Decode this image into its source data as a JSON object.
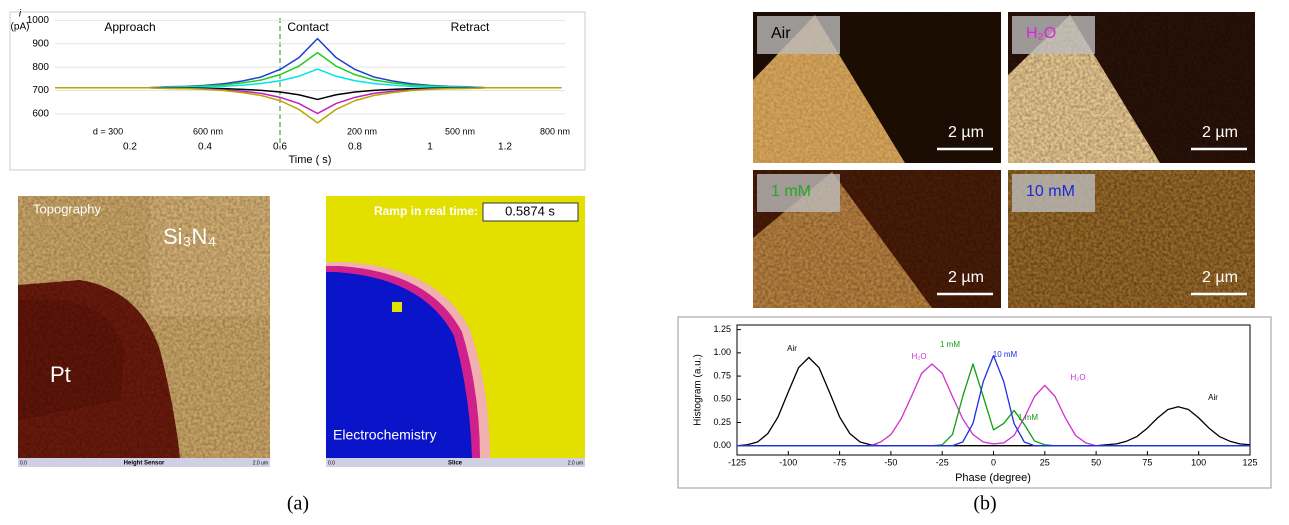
{
  "panel_labels": [
    "(a)",
    "(b)"
  ],
  "maps": {
    "topography": {
      "title": "Topography",
      "material_top": "Si₃N₄",
      "material_bottom": "Pt",
      "axis_start": "0.0",
      "axis_label": "Height Sensor",
      "axis_end": "2.0 um"
    },
    "electrochemistry": {
      "title": "Electrochemistry",
      "ramp_label": "Ramp in real time:",
      "ramp_value": "0.5874 s",
      "axis_start": "0.0",
      "axis_label": "Slice",
      "axis_end": "2.0 um"
    }
  },
  "phase_images": [
    {
      "label": "Air",
      "scale": "2 µm"
    },
    {
      "label": "H₂O",
      "scale": "2 µm"
    },
    {
      "label": "1 mM",
      "scale": "2 µm"
    },
    {
      "label": "10 mM",
      "scale": "2 µm"
    }
  ],
  "chart_data": [
    {
      "type": "line",
      "y_label_symbol": "i",
      "y_label": "(pA)",
      "x_label": "Time ( s)",
      "phase_labels": [
        "Approach",
        "Contact",
        "Retract"
      ],
      "distance_labels": [
        "d = 300",
        "600 nm",
        "200 nm",
        "500 nm",
        "800 nm"
      ],
      "x": [
        0,
        0.05,
        0.1,
        0.15,
        0.2,
        0.25,
        0.3,
        0.35,
        0.4,
        0.45,
        0.5,
        0.55,
        0.6,
        0.65,
        0.7,
        0.75,
        0.8,
        0.85,
        0.9,
        0.95,
        1,
        1.05,
        1.1,
        1.15,
        1.2,
        1.25,
        1.3,
        1.35
      ],
      "xlim": [
        0,
        1.36
      ],
      "xticks": [
        0.2,
        0.4,
        0.6,
        0.8,
        1,
        1.2
      ],
      "ylim": [
        540,
        1010
      ],
      "yticks": [
        600,
        700,
        800,
        900,
        1000
      ],
      "grid": true,
      "series": [
        {
          "color": "#1f3fd0",
          "values": [
            712,
            712,
            712,
            712,
            712,
            712,
            716,
            718,
            722,
            729,
            741,
            758,
            790,
            840,
            922,
            840,
            790,
            758,
            741,
            729,
            722,
            718,
            716,
            712,
            712,
            712,
            712,
            712
          ]
        },
        {
          "color": "#22cc22",
          "values": [
            712,
            712,
            712,
            712,
            712,
            712,
            715,
            717,
            720,
            724,
            733,
            745,
            768,
            804,
            862,
            804,
            768,
            745,
            733,
            724,
            720,
            717,
            715,
            712,
            712,
            712,
            712,
            712
          ]
        },
        {
          "color": "#00e5e5",
          "values": [
            712,
            712,
            712,
            712,
            712,
            712,
            714,
            714,
            716,
            718,
            723,
            730,
            742,
            761,
            792,
            761,
            742,
            730,
            723,
            718,
            716,
            714,
            714,
            712,
            712,
            712,
            712,
            712
          ]
        },
        {
          "color": "#000000",
          "values": [
            712,
            712,
            712,
            712,
            712,
            712,
            711,
            711,
            710,
            708,
            705,
            701,
            694,
            682,
            662,
            682,
            694,
            701,
            705,
            708,
            710,
            711,
            711,
            712,
            712,
            712,
            712,
            712
          ]
        },
        {
          "color": "#c020c0",
          "values": [
            712,
            712,
            712,
            712,
            712,
            712,
            710,
            709,
            707,
            703,
            697,
            688,
            671,
            645,
            602,
            645,
            671,
            688,
            697,
            703,
            707,
            709,
            710,
            712,
            712,
            712,
            712,
            712
          ]
        },
        {
          "color": "#b5a800",
          "values": [
            712,
            712,
            712,
            712,
            712,
            712,
            709,
            708,
            705,
            700,
            691,
            679,
            657,
            620,
            562,
            620,
            657,
            679,
            691,
            700,
            705,
            708,
            709,
            712,
            712,
            712,
            712,
            712
          ]
        }
      ]
    },
    {
      "type": "line",
      "x_label": "Phase (degree)",
      "y_label": "Histogram (a.u.)",
      "annotations": [
        "Air",
        "H₂O",
        "1 mM",
        "10 mM",
        "1 mM",
        "H₂O",
        "Air"
      ],
      "x": [
        -125,
        -120,
        -115,
        -110,
        -105,
        -100,
        -95,
        -90,
        -85,
        -80,
        -75,
        -70,
        -65,
        -60,
        -55,
        -50,
        -45,
        -40,
        -35,
        -30,
        -25,
        -20,
        -15,
        -10,
        -5,
        0,
        5,
        10,
        15,
        20,
        25,
        30,
        35,
        40,
        45,
        50,
        55,
        60,
        65,
        70,
        75,
        80,
        85,
        90,
        95,
        100,
        105,
        110,
        115,
        120,
        125
      ],
      "xlim": [
        -125,
        125
      ],
      "xticks": [
        -125,
        -100,
        -75,
        -50,
        -25,
        0,
        25,
        50,
        75,
        100,
        125
      ],
      "ylim": [
        -0.1,
        1.3
      ],
      "yticks": [
        {
          "value": 0,
          "label": "0.00"
        },
        {
          "value": 0.25,
          "label": "0.25"
        },
        {
          "value": 0.5,
          "label": "0.50"
        },
        {
          "value": 0.75,
          "label": "0.75"
        },
        {
          "value": 1,
          "label": "1.00"
        },
        {
          "value": 1.25,
          "label": "1.25"
        }
      ],
      "grid": false,
      "series": [
        {
          "color": "#000000",
          "values": [
            0,
            0.01,
            0.04,
            0.13,
            0.31,
            0.58,
            0.84,
            0.95,
            0.84,
            0.58,
            0.31,
            0.13,
            0.04,
            0.01,
            0,
            0,
            0,
            0,
            0,
            0,
            0,
            0,
            0,
            0,
            0,
            0,
            0,
            0,
            0,
            0,
            0,
            0,
            0,
            0,
            0,
            0,
            0.01,
            0.02,
            0.05,
            0.1,
            0.19,
            0.3,
            0.39,
            0.42,
            0.39,
            0.3,
            0.19,
            0.1,
            0.05,
            0.02,
            0.01
          ]
        },
        {
          "color": "#d030d0",
          "values": [
            0,
            0,
            0,
            0,
            0,
            0,
            0,
            0,
            0,
            0,
            0,
            0,
            0,
            0,
            0.04,
            0.12,
            0.29,
            0.53,
            0.78,
            0.88,
            0.78,
            0.53,
            0.29,
            0.12,
            0.04,
            0.02,
            0.03,
            0.11,
            0.3,
            0.53,
            0.65,
            0.53,
            0.3,
            0.11,
            0.03,
            0,
            0,
            0,
            0,
            0,
            0,
            0,
            0,
            0,
            0,
            0,
            0,
            0,
            0,
            0,
            0
          ]
        },
        {
          "color": "#10a010",
          "values": [
            0,
            0,
            0,
            0,
            0,
            0,
            0,
            0,
            0,
            0,
            0,
            0,
            0,
            0,
            0,
            0,
            0,
            0,
            0,
            0,
            0.01,
            0.12,
            0.53,
            0.88,
            0.53,
            0.17,
            0.24,
            0.38,
            0.23,
            0.05,
            0.01,
            0,
            0,
            0,
            0,
            0,
            0,
            0,
            0,
            0,
            0,
            0,
            0,
            0,
            0,
            0,
            0,
            0,
            0,
            0,
            0
          ]
        },
        {
          "color": "#2030e0",
          "values": [
            0,
            0,
            0,
            0,
            0,
            0,
            0,
            0,
            0,
            0,
            0,
            0,
            0,
            0,
            0,
            0,
            0,
            0,
            0,
            0,
            0,
            0,
            0.04,
            0.24,
            0.69,
            0.97,
            0.69,
            0.24,
            0.04,
            0,
            0,
            0,
            0,
            0,
            0,
            0,
            0,
            0,
            0,
            0,
            0,
            0,
            0,
            0,
            0,
            0,
            0,
            0,
            0,
            0,
            0
          ]
        }
      ]
    }
  ]
}
